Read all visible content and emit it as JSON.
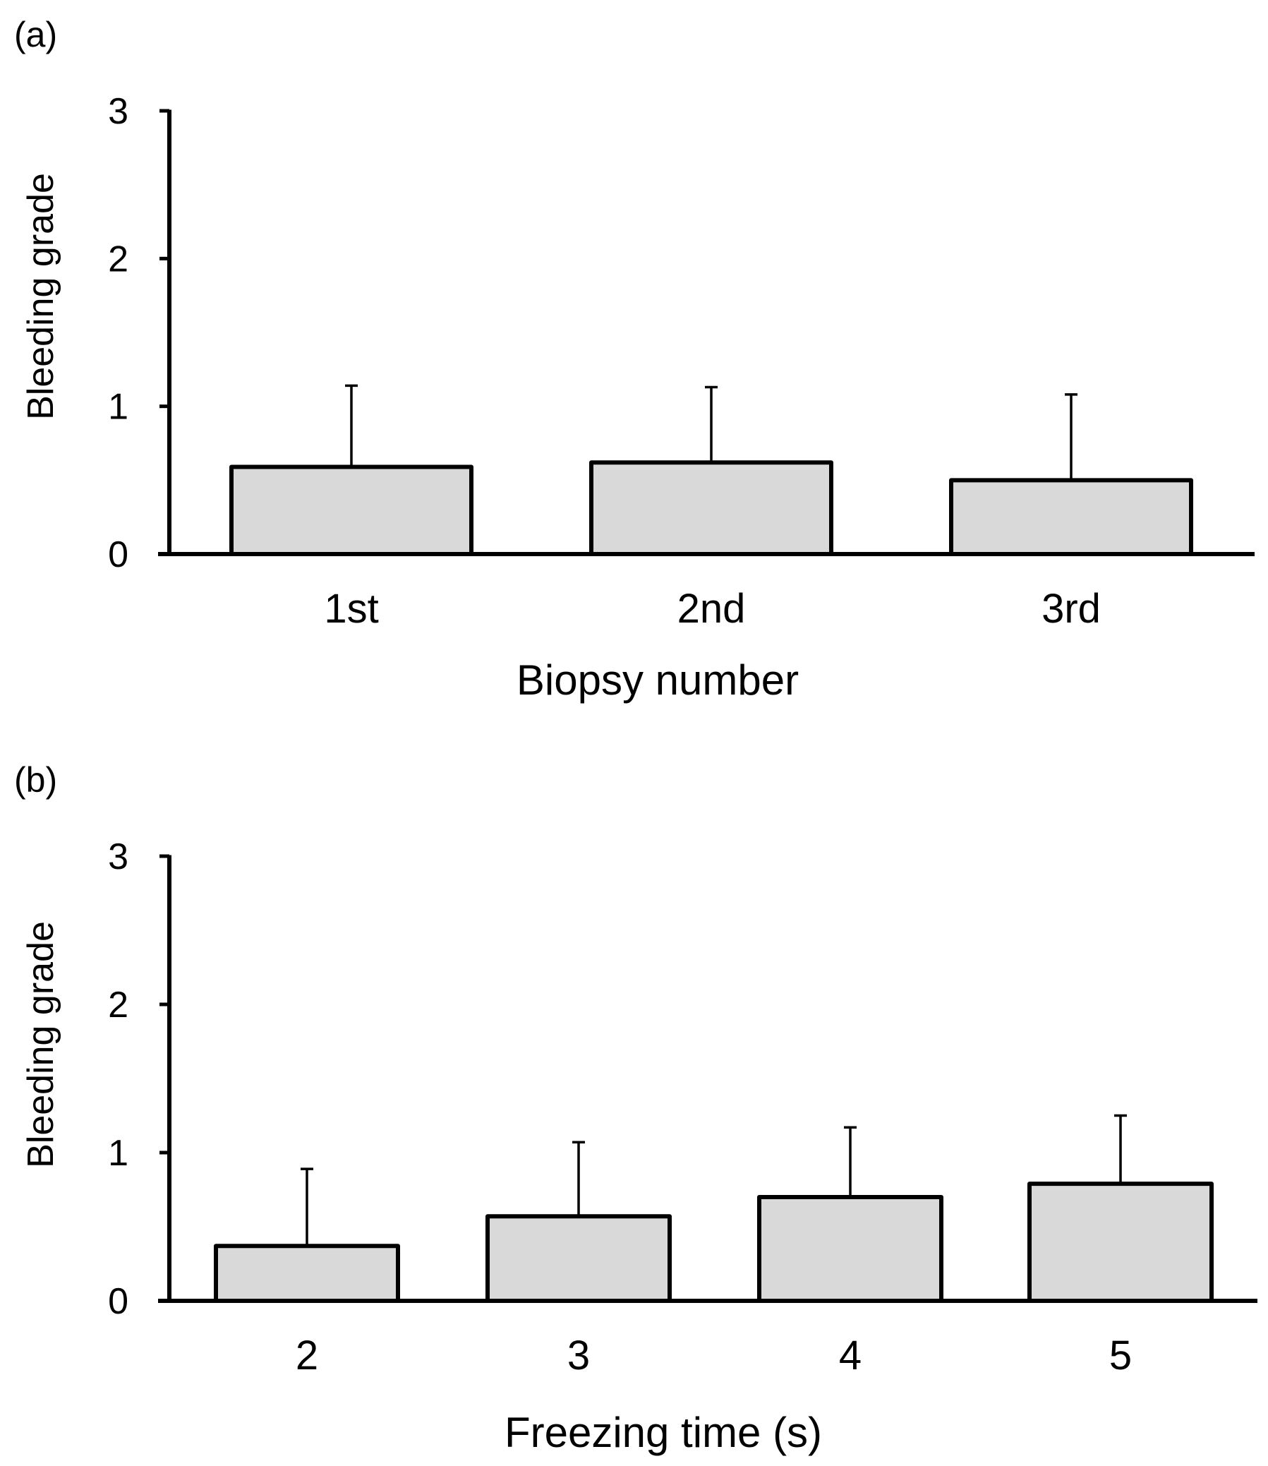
{
  "colors": {
    "bar_fill": "#d9d9d9",
    "bar_stroke": "#000000",
    "axis": "#000000",
    "background": "#ffffff"
  },
  "chart_data": [
    {
      "panel_label": "(a)",
      "type": "bar",
      "categories": [
        "1st",
        "2nd",
        "3rd"
      ],
      "values": [
        0.59,
        0.62,
        0.5
      ],
      "error_upper": [
        1.14,
        1.13,
        1.08
      ],
      "xlabel": "Biopsy number",
      "ylabel": "Bleeding grade",
      "ylim": [
        0,
        3
      ],
      "yticks": [
        "0",
        "1",
        "2",
        "3"
      ],
      "grid": false
    },
    {
      "panel_label": "(b)",
      "type": "bar",
      "categories": [
        "2",
        "3",
        "4",
        "5"
      ],
      "values": [
        0.37,
        0.57,
        0.7,
        0.79
      ],
      "error_upper": [
        0.89,
        1.07,
        1.17,
        1.25
      ],
      "xlabel": "Freezing time (s)",
      "ylabel": "Bleeding grade",
      "ylim": [
        0,
        3
      ],
      "yticks": [
        "0",
        "1",
        "2",
        "3"
      ],
      "grid": false
    }
  ]
}
